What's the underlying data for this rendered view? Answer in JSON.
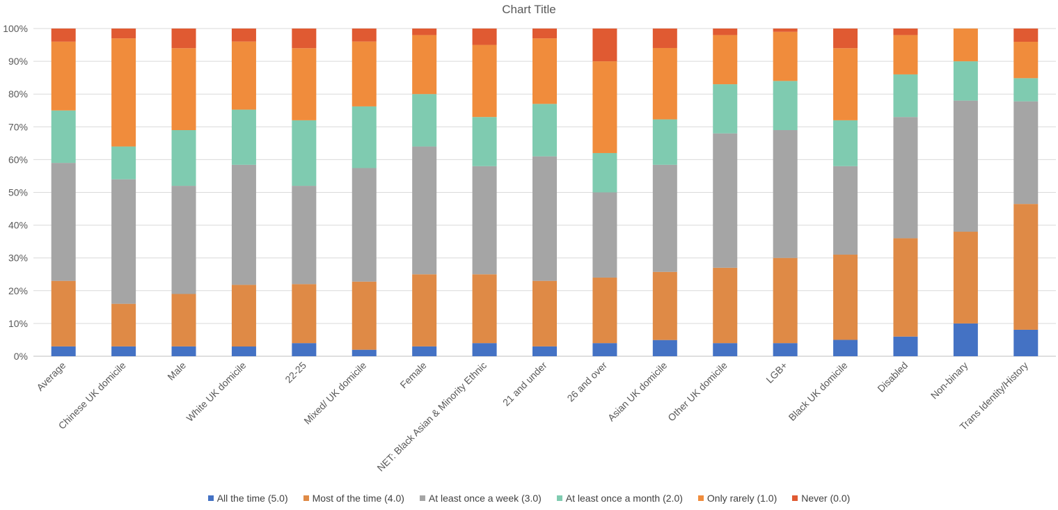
{
  "chart_data": {
    "type": "bar",
    "stacked": true,
    "percent": true,
    "title": "Chart Title",
    "ylim": [
      0,
      100
    ],
    "yticks": [
      "0%",
      "10%",
      "20%",
      "30%",
      "40%",
      "50%",
      "60%",
      "70%",
      "80%",
      "90%",
      "100%"
    ],
    "grid": true,
    "legend_position": "bottom",
    "categories": [
      "Average",
      "Chinese UK domicile",
      "Male",
      "White UK domicile",
      "22-25",
      "Mixed/ UK domicile",
      "Female",
      "NET: Black Asian & Minority Ethnic",
      "21 and under",
      "26 and over",
      "Asian UK domicile",
      "Other UK domicile",
      "LGB+",
      "Black UK domicile",
      "Disabled",
      "Non-binary",
      "Trans Identity/History"
    ],
    "series": [
      {
        "name": "All the time (5.0)",
        "color": "#4472c4",
        "values": [
          3,
          3,
          3,
          3,
          4,
          2,
          3,
          4,
          3,
          4,
          5,
          4,
          4,
          5,
          6,
          10,
          8
        ]
      },
      {
        "name": "Most of the time (4.0)",
        "color": "#df8a46",
        "values": [
          20,
          13,
          16,
          19,
          18,
          21,
          22,
          21,
          20,
          20,
          21,
          23,
          26,
          26,
          30,
          28,
          38
        ]
      },
      {
        "name": "At least once a week (3.0)",
        "color": "#a5a5a5",
        "values": [
          36,
          38,
          33,
          37,
          30,
          35,
          39,
          33,
          38,
          26,
          33,
          41,
          39,
          27,
          37,
          40,
          31
        ]
      },
      {
        "name": "At least once a month (2.0)",
        "color": "#7fcbb0",
        "values": [
          16,
          10,
          17,
          17,
          20,
          19,
          16,
          15,
          16,
          12,
          14,
          15,
          15,
          14,
          13,
          12,
          7
        ]
      },
      {
        "name": "Only rarely (1.0)",
        "color": "#f08c3c",
        "values": [
          21,
          33,
          25,
          21,
          22,
          20,
          18,
          22,
          20,
          28,
          22,
          15,
          15,
          22,
          12,
          10,
          11
        ]
      },
      {
        "name": "Never (0.0)",
        "color": "#e05a32",
        "values": [
          4,
          3,
          6,
          4,
          6,
          4,
          2,
          5,
          3,
          10,
          6,
          2,
          1,
          6,
          2,
          0,
          4
        ]
      }
    ]
  }
}
